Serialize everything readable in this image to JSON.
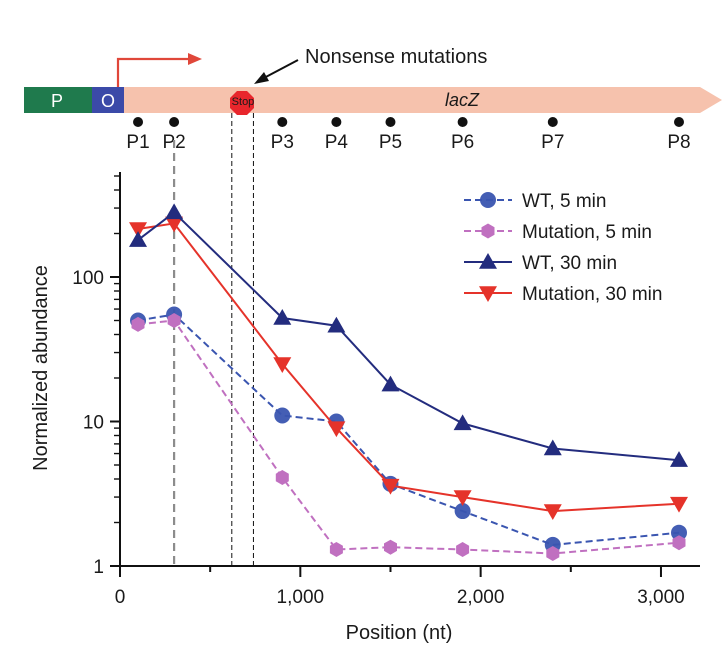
{
  "diagram": {
    "promoter_label": "P",
    "operator_label": "O",
    "gene_label": "lacZ",
    "stop_label": "Stop",
    "annotation": "Nonsense mutations",
    "colors": {
      "promoter": "#1f7a4d",
      "operator": "#3b4aa8",
      "gene": "#f6c2ad",
      "transcription_arrow": "#e0473a",
      "stop": "#e8262c"
    },
    "probes": [
      {
        "label": "P1",
        "position": 100
      },
      {
        "label": "P2",
        "position": 300
      },
      {
        "label": "P3",
        "position": 900
      },
      {
        "label": "P4",
        "position": 1200
      },
      {
        "label": "P5",
        "position": 1500
      },
      {
        "label": "P6",
        "position": 1900
      },
      {
        "label": "P7",
        "position": 2400
      },
      {
        "label": "P8",
        "position": 3100
      }
    ]
  },
  "chart_data": {
    "type": "line",
    "title": "",
    "xlabel": "Position (nt)",
    "ylabel": "Normalized abundance",
    "xlim": [
      0,
      3200
    ],
    "ylim": [
      1,
      500
    ],
    "yscale": "log",
    "xticks": [
      0,
      1000,
      2000,
      3000
    ],
    "xtick_labels": [
      "0",
      "1,000",
      "2,000",
      "3,000"
    ],
    "yticks": [
      1,
      10,
      100
    ],
    "ytick_labels": [
      "1",
      "10",
      "100"
    ],
    "vlines": [
      {
        "x": 300,
        "style": "gray-dashed"
      },
      {
        "x": 620,
        "style": "black-dashed"
      },
      {
        "x": 740,
        "style": "black-dashed"
      }
    ],
    "legend_position": "top-right",
    "series": [
      {
        "name": "WT, 5 min",
        "color": "#3a55b0",
        "dash": "dashed",
        "marker": "circle",
        "x": [
          100,
          300,
          900,
          1200,
          1500,
          1900,
          2400,
          3100
        ],
        "y": [
          50,
          55,
          11,
          10,
          3.7,
          2.4,
          1.4,
          1.7
        ]
      },
      {
        "name": "Mutation, 5 min",
        "color": "#c070c0",
        "dash": "dashed",
        "marker": "hexagon",
        "x": [
          100,
          300,
          900,
          1200,
          1500,
          1900,
          2400,
          3100
        ],
        "y": [
          47,
          50,
          4.1,
          1.3,
          1.35,
          1.3,
          1.22,
          1.45
        ]
      },
      {
        "name": "WT, 30 min",
        "color": "#232c7e",
        "dash": "solid",
        "marker": "triangle-up",
        "x": [
          100,
          300,
          900,
          1200,
          1500,
          1900,
          2400,
          3100
        ],
        "y": [
          180,
          280,
          52,
          46,
          18,
          9.7,
          6.5,
          5.4
        ]
      },
      {
        "name": "Mutation, 30 min",
        "color": "#e5332a",
        "dash": "solid",
        "marker": "triangle-down",
        "x": [
          100,
          300,
          900,
          1200,
          1500,
          1900,
          2400,
          3100
        ],
        "y": [
          215,
          235,
          25,
          9,
          3.6,
          3.0,
          2.4,
          2.7
        ]
      }
    ]
  }
}
